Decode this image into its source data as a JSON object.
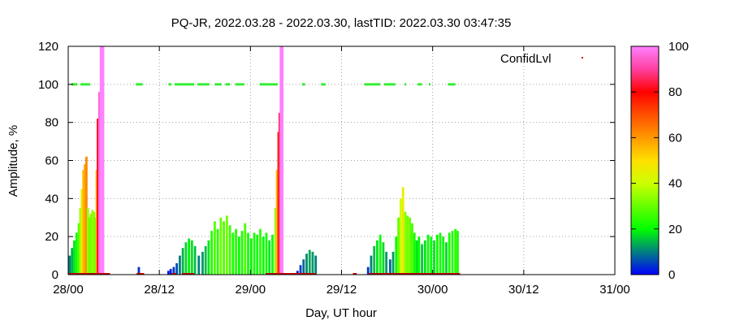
{
  "chart_data": {
    "type": "bar",
    "title": "PQ-JR, 2022.03.28 - 2022.03.30, lastTID: 2022.03.30 03:47:35",
    "xlabel": "Day, UT hour",
    "ylabel": "Amplitude, %",
    "xlim": [
      0,
      72
    ],
    "ylim": [
      0,
      120
    ],
    "x_ticks": [
      {
        "value": 0,
        "label": "28/00"
      },
      {
        "value": 12,
        "label": "28/12"
      },
      {
        "value": 24,
        "label": "29/00"
      },
      {
        "value": 36,
        "label": "29/12"
      },
      {
        "value": 48,
        "label": "30/00"
      },
      {
        "value": 60,
        "label": "30/12"
      },
      {
        "value": 72,
        "label": "31/00"
      }
    ],
    "y_ticks": [
      0,
      20,
      40,
      60,
      80,
      100,
      120
    ],
    "grid": true,
    "legend": {
      "position": "top-right",
      "label": "ConfidLvl",
      "marker_color": "#d00000"
    },
    "colorbar": {
      "min": 0,
      "max": 100,
      "ticks": [
        0,
        20,
        40,
        60,
        80,
        100
      ]
    },
    "amplitude_series": [
      {
        "x": 0.2,
        "y": 10
      },
      {
        "x": 0.5,
        "y": 14
      },
      {
        "x": 0.8,
        "y": 18
      },
      {
        "x": 1.1,
        "y": 22
      },
      {
        "x": 1.4,
        "y": 27
      },
      {
        "x": 1.6,
        "y": 35
      },
      {
        "x": 1.8,
        "y": 45
      },
      {
        "x": 2.0,
        "y": 55
      },
      {
        "x": 2.2,
        "y": 58
      },
      {
        "x": 2.4,
        "y": 62
      },
      {
        "x": 2.6,
        "y": 35
      },
      {
        "x": 2.8,
        "y": 30
      },
      {
        "x": 3.0,
        "y": 32
      },
      {
        "x": 3.2,
        "y": 34
      },
      {
        "x": 3.4,
        "y": 33
      },
      {
        "x": 3.6,
        "y": 30
      },
      {
        "x": 3.75,
        "y": 55
      },
      {
        "x": 3.9,
        "y": 82
      },
      {
        "x": 4.1,
        "y": 96
      },
      {
        "x": 4.3,
        "y": 120
      },
      {
        "x": 4.6,
        "y": 120
      },
      {
        "x": 9.3,
        "y": 4
      },
      {
        "x": 13.2,
        "y": 2
      },
      {
        "x": 13.5,
        "y": 3
      },
      {
        "x": 13.9,
        "y": 4
      },
      {
        "x": 14.3,
        "y": 6
      },
      {
        "x": 14.7,
        "y": 10
      },
      {
        "x": 15.1,
        "y": 14
      },
      {
        "x": 15.5,
        "y": 17
      },
      {
        "x": 15.9,
        "y": 19
      },
      {
        "x": 16.3,
        "y": 18
      },
      {
        "x": 16.7,
        "y": 15
      },
      {
        "x": 17.2,
        "y": 10
      },
      {
        "x": 17.7,
        "y": 12
      },
      {
        "x": 18.1,
        "y": 15
      },
      {
        "x": 18.5,
        "y": 18
      },
      {
        "x": 18.9,
        "y": 23
      },
      {
        "x": 19.3,
        "y": 28
      },
      {
        "x": 19.7,
        "y": 24
      },
      {
        "x": 20.1,
        "y": 30
      },
      {
        "x": 20.5,
        "y": 28
      },
      {
        "x": 20.9,
        "y": 31
      },
      {
        "x": 21.3,
        "y": 26
      },
      {
        "x": 21.7,
        "y": 22
      },
      {
        "x": 22.1,
        "y": 24
      },
      {
        "x": 22.5,
        "y": 20
      },
      {
        "x": 22.9,
        "y": 23
      },
      {
        "x": 23.3,
        "y": 27
      },
      {
        "x": 23.7,
        "y": 22
      },
      {
        "x": 24.1,
        "y": 19
      },
      {
        "x": 24.5,
        "y": 22
      },
      {
        "x": 24.9,
        "y": 21
      },
      {
        "x": 25.3,
        "y": 24
      },
      {
        "x": 25.7,
        "y": 20
      },
      {
        "x": 26.1,
        "y": 22
      },
      {
        "x": 26.5,
        "y": 18
      },
      {
        "x": 26.9,
        "y": 21
      },
      {
        "x": 27.3,
        "y": 35
      },
      {
        "x": 27.5,
        "y": 55
      },
      {
        "x": 27.7,
        "y": 75
      },
      {
        "x": 27.85,
        "y": 85
      },
      {
        "x": 28.0,
        "y": 120
      },
      {
        "x": 28.2,
        "y": 120
      },
      {
        "x": 30.2,
        "y": 2
      },
      {
        "x": 30.6,
        "y": 5
      },
      {
        "x": 31.0,
        "y": 8
      },
      {
        "x": 31.4,
        "y": 11
      },
      {
        "x": 31.8,
        "y": 13
      },
      {
        "x": 32.2,
        "y": 12
      },
      {
        "x": 32.6,
        "y": 10
      },
      {
        "x": 39.5,
        "y": 4
      },
      {
        "x": 39.9,
        "y": 10
      },
      {
        "x": 40.3,
        "y": 15
      },
      {
        "x": 40.7,
        "y": 18
      },
      {
        "x": 41.1,
        "y": 21
      },
      {
        "x": 41.5,
        "y": 17
      },
      {
        "x": 41.9,
        "y": 12
      },
      {
        "x": 42.4,
        "y": 8
      },
      {
        "x": 42.8,
        "y": 12
      },
      {
        "x": 43.2,
        "y": 20
      },
      {
        "x": 43.5,
        "y": 30
      },
      {
        "x": 43.8,
        "y": 40
      },
      {
        "x": 44.1,
        "y": 46
      },
      {
        "x": 44.4,
        "y": 33
      },
      {
        "x": 44.7,
        "y": 31
      },
      {
        "x": 45.0,
        "y": 30
      },
      {
        "x": 45.3,
        "y": 27
      },
      {
        "x": 45.6,
        "y": 22
      },
      {
        "x": 45.9,
        "y": 18
      },
      {
        "x": 46.2,
        "y": 20
      },
      {
        "x": 46.6,
        "y": 16
      },
      {
        "x": 47.0,
        "y": 18
      },
      {
        "x": 47.4,
        "y": 21
      },
      {
        "x": 47.8,
        "y": 20
      },
      {
        "x": 48.2,
        "y": 18
      },
      {
        "x": 48.6,
        "y": 21
      },
      {
        "x": 49.0,
        "y": 22
      },
      {
        "x": 49.4,
        "y": 20
      },
      {
        "x": 49.8,
        "y": 17
      },
      {
        "x": 50.2,
        "y": 22
      },
      {
        "x": 50.6,
        "y": 23
      },
      {
        "x": 51.0,
        "y": 24
      },
      {
        "x": 51.3,
        "y": 23
      }
    ],
    "confidence_points": [
      {
        "x_start": 0.4,
        "x_end": 1.2,
        "y": 100
      },
      {
        "x_start": 1.6,
        "x_end": 2.9,
        "y": 100
      },
      {
        "x_start": 8.9,
        "x_end": 9.8,
        "y": 100
      },
      {
        "x_start": 13.2,
        "x_end": 13.6,
        "y": 100
      },
      {
        "x_start": 14.0,
        "x_end": 16.6,
        "y": 100
      },
      {
        "x_start": 17.0,
        "x_end": 18.6,
        "y": 100
      },
      {
        "x_start": 19.3,
        "x_end": 20.2,
        "y": 100
      },
      {
        "x_start": 20.7,
        "x_end": 21.3,
        "y": 100
      },
      {
        "x_start": 22.0,
        "x_end": 23.2,
        "y": 100
      },
      {
        "x_start": 25.2,
        "x_end": 27.6,
        "y": 100
      },
      {
        "x_start": 30.8,
        "x_end": 31.2,
        "y": 100
      },
      {
        "x_start": 33.3,
        "x_end": 33.9,
        "y": 100
      },
      {
        "x_start": 39.0,
        "x_end": 41.1,
        "y": 100
      },
      {
        "x_start": 41.6,
        "x_end": 43.1,
        "y": 100
      },
      {
        "x_start": 44.3,
        "x_end": 44.5,
        "y": 100
      },
      {
        "x_start": 46.0,
        "x_end": 46.6,
        "y": 100
      },
      {
        "x_start": 47.5,
        "x_end": 47.7,
        "y": 100
      },
      {
        "x_start": 50.0,
        "x_end": 51.0,
        "y": 100
      }
    ],
    "baseline_red_segments": [
      {
        "x_start": 0.1,
        "x_end": 5.5
      },
      {
        "x_start": 9.0,
        "x_end": 10.0
      },
      {
        "x_start": 13.6,
        "x_end": 14.2
      },
      {
        "x_start": 15.0,
        "x_end": 16.6
      },
      {
        "x_start": 26.0,
        "x_end": 32.6
      },
      {
        "x_start": 37.5,
        "x_end": 38.0
      },
      {
        "x_start": 39.6,
        "x_end": 51.6
      }
    ]
  }
}
